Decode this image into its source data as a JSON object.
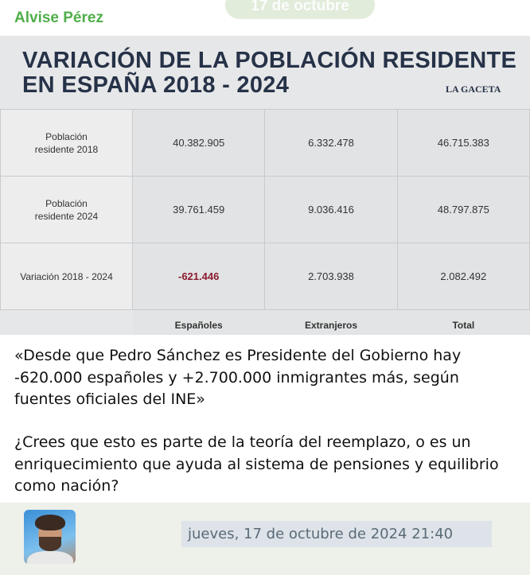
{
  "message": {
    "sender": "Alvise Pérez",
    "date_badge": "17 de octubre",
    "image": {
      "title_lines": [
        "VARIACIÓN DE LA POBLACIÓN RESIDENTE",
        "EN ESPAÑA 2018 - 2024"
      ],
      "logo": "LA GACETA",
      "table": {
        "rows": [
          [
            "Población\nresidente 2018",
            "40.382.905",
            "6.332.478",
            "46.715.383"
          ],
          [
            "Población\nresidente 2024",
            "39.761.459",
            "9.036.416",
            "48.797.875"
          ],
          [
            "Variación 2018 - 2024",
            "-621.446",
            "2.703.938",
            "2.082.492"
          ]
        ],
        "column_headers": [
          "Españoles",
          "Extranjeros",
          "Total"
        ]
      }
    },
    "paragraphs": [
      "«Desde que Pedro Sánchez es Presidente del Gobierno hay -620.000 españoles y +2.700.000 inmigrantes más, según fuentes oficiales del INE»",
      "¿Crees que esto es parte de la teoría del reemplazo, o es un enriquecimiento que ayuda al sistema de pensiones y equilibrio como nación?"
    ],
    "timestamp": "jueves, 17 de octubre de 2024 21:40"
  }
}
